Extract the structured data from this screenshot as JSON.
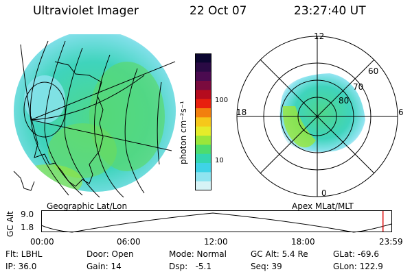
{
  "header": {
    "instrument": "Ultraviolet Imager",
    "date": "22 Oct 07",
    "time": "23:27:40 UT"
  },
  "left_panel": {
    "label": "Geographic Lat/Lon"
  },
  "right_panel": {
    "label": "Apex MLat/MLT",
    "mlt_labels": {
      "top": "12",
      "bottom": "0",
      "left": "18",
      "right": "6"
    },
    "lat_labels": [
      "60",
      "70",
      "80"
    ]
  },
  "colorbar": {
    "unit": "photon cm⁻²s⁻¹",
    "ticks": [
      "100",
      "10"
    ],
    "colors": [
      "#0b0630",
      "#2a0a44",
      "#4b0b50",
      "#7a0b3e",
      "#b50b1e",
      "#e8200e",
      "#f2800e",
      "#f6c81a",
      "#e5ec2a",
      "#9ae63a",
      "#4ddc6e",
      "#33d6b0",
      "#3fd3e6",
      "#8fe4f0",
      "#d7f3f6"
    ]
  },
  "altitude_plot": {
    "ylabel": "GC Alt",
    "yticks": [
      "9.0",
      "1.8"
    ],
    "xticks": [
      "00:00",
      "06:00",
      "12:00",
      "18:00",
      "23:59"
    ],
    "current_time_fraction": 0.976
  },
  "status": {
    "flt": "Flt: LBHL",
    "ip": "IP: 36.0",
    "door": "Door: Open",
    "gain": "Gain: 14",
    "mode": "Mode: Normal",
    "dsp": "Dsp:   -5.1",
    "gcalt": "GC Alt: 5.4 Re",
    "seq": "Seq: 39",
    "glat": "GLat: -69.6",
    "glon": "GLon: 122.9"
  }
}
